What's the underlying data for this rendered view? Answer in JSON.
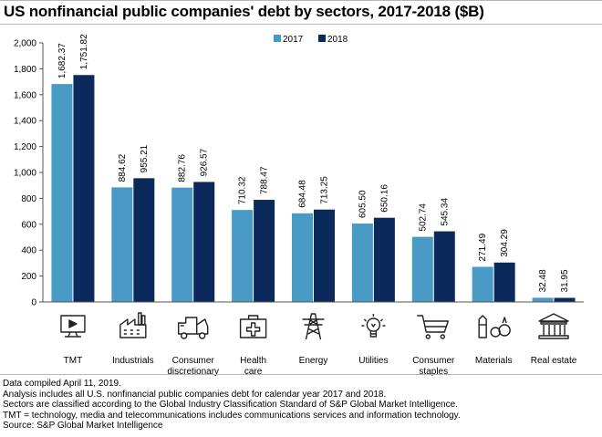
{
  "colors": {
    "series_2017": "#4a9ac6",
    "series_2018": "#0b2a5b",
    "axis": "#555555",
    "icon": "#222222"
  },
  "chart_data": {
    "type": "bar",
    "title": "US nonfinancial public companies' debt by sectors, 2017-2018 ($B)",
    "categories": [
      "TMT",
      "Industrials",
      "Consumer discretionary",
      "Health care",
      "Energy",
      "Utilities",
      "Consumer staples",
      "Materials",
      "Real estate"
    ],
    "category_lines": [
      [
        "TMT"
      ],
      [
        "Industrials"
      ],
      [
        "Consumer",
        "discretionary"
      ],
      [
        "Health",
        "care"
      ],
      [
        "Energy"
      ],
      [
        "Utilities"
      ],
      [
        "Consumer",
        "staples"
      ],
      [
        "Materials"
      ],
      [
        "Real estate"
      ]
    ],
    "category_icons": [
      "computer-monitor-icon",
      "factory-icon",
      "truck-icon",
      "first-aid-kit-icon",
      "power-pylon-icon",
      "light-bulb-icon",
      "shopping-cart-icon",
      "raw-materials-icon",
      "bank-building-icon"
    ],
    "series": [
      {
        "name": "2017",
        "values": [
          1682.37,
          884.62,
          882.76,
          710.32,
          684.48,
          605.5,
          502.74,
          271.49,
          32.48
        ],
        "labels": [
          "1,682.37",
          "884.62",
          "882.76",
          "710.32",
          "684.48",
          "605.50",
          "502.74",
          "271.49",
          "32.48"
        ]
      },
      {
        "name": "2018",
        "values": [
          1751.82,
          955.21,
          926.57,
          788.47,
          713.25,
          650.16,
          545.34,
          304.29,
          31.95
        ],
        "labels": [
          "1,751.82",
          "955.21",
          "926.57",
          "788.47",
          "713.25",
          "650.16",
          "545.34",
          "304.29",
          "31.95"
        ]
      }
    ],
    "yticks": [
      0,
      200,
      400,
      600,
      800,
      1000,
      1200,
      1400,
      1600,
      1800,
      2000
    ],
    "ytick_labels": [
      "0",
      "200",
      "400",
      "600",
      "800",
      "1,000",
      "1,200",
      "1,400",
      "1,600",
      "1,800",
      "2,000"
    ],
    "ylim": [
      0,
      2000
    ],
    "xlabel": "",
    "ylabel": "",
    "grid": false,
    "legend_position": "top-center"
  },
  "footnotes": [
    "Data compiled April 11, 2019.",
    "Analysis includes all  U.S. nonfinancial public companies debt for calendar year 2017 and 2018.",
    "Sectors are classified according to the Global Industry Classification Standard of S&P Global Market Intelligence.",
    "TMT = technology, media and telecommunications includes communications services and information technology.",
    "Source: S&P Global Market Intelligence"
  ]
}
